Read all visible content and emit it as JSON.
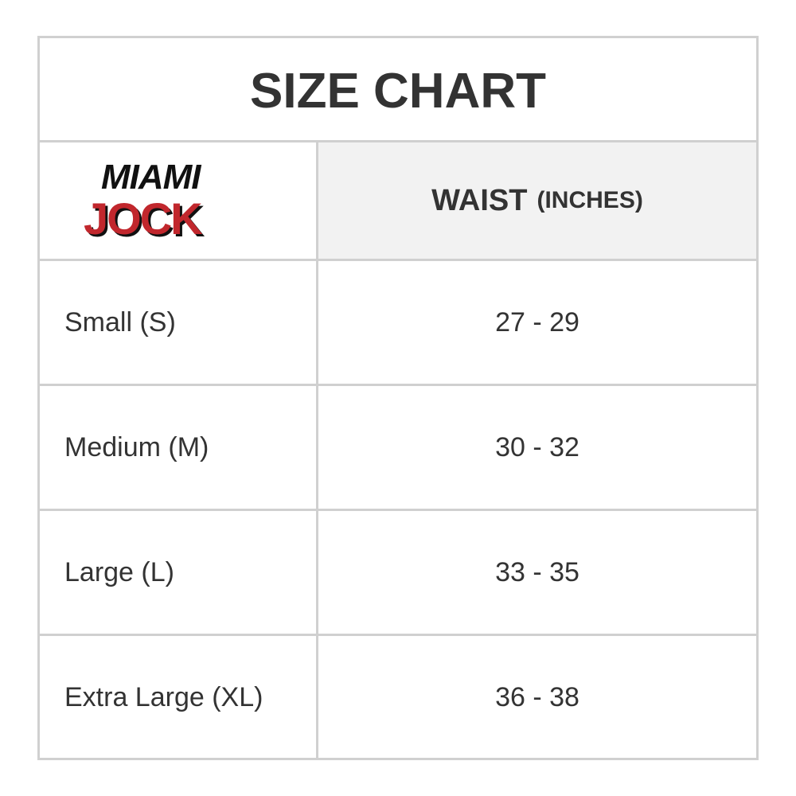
{
  "title": "SIZE CHART",
  "logo": {
    "line1": "MIAMI",
    "line2": "JOCK",
    "colors": {
      "red": "#c1272d",
      "black": "#111111"
    }
  },
  "header": {
    "waist": "WAIST",
    "unit": "(INCHES)"
  },
  "rows": [
    {
      "size": "Small (S)",
      "waist": "27 - 29"
    },
    {
      "size": "Medium (M)",
      "waist": "30 - 32"
    },
    {
      "size": "Large (L)",
      "waist": "33 - 35"
    },
    {
      "size": "Extra Large (XL)",
      "waist": "36 - 38"
    }
  ]
}
